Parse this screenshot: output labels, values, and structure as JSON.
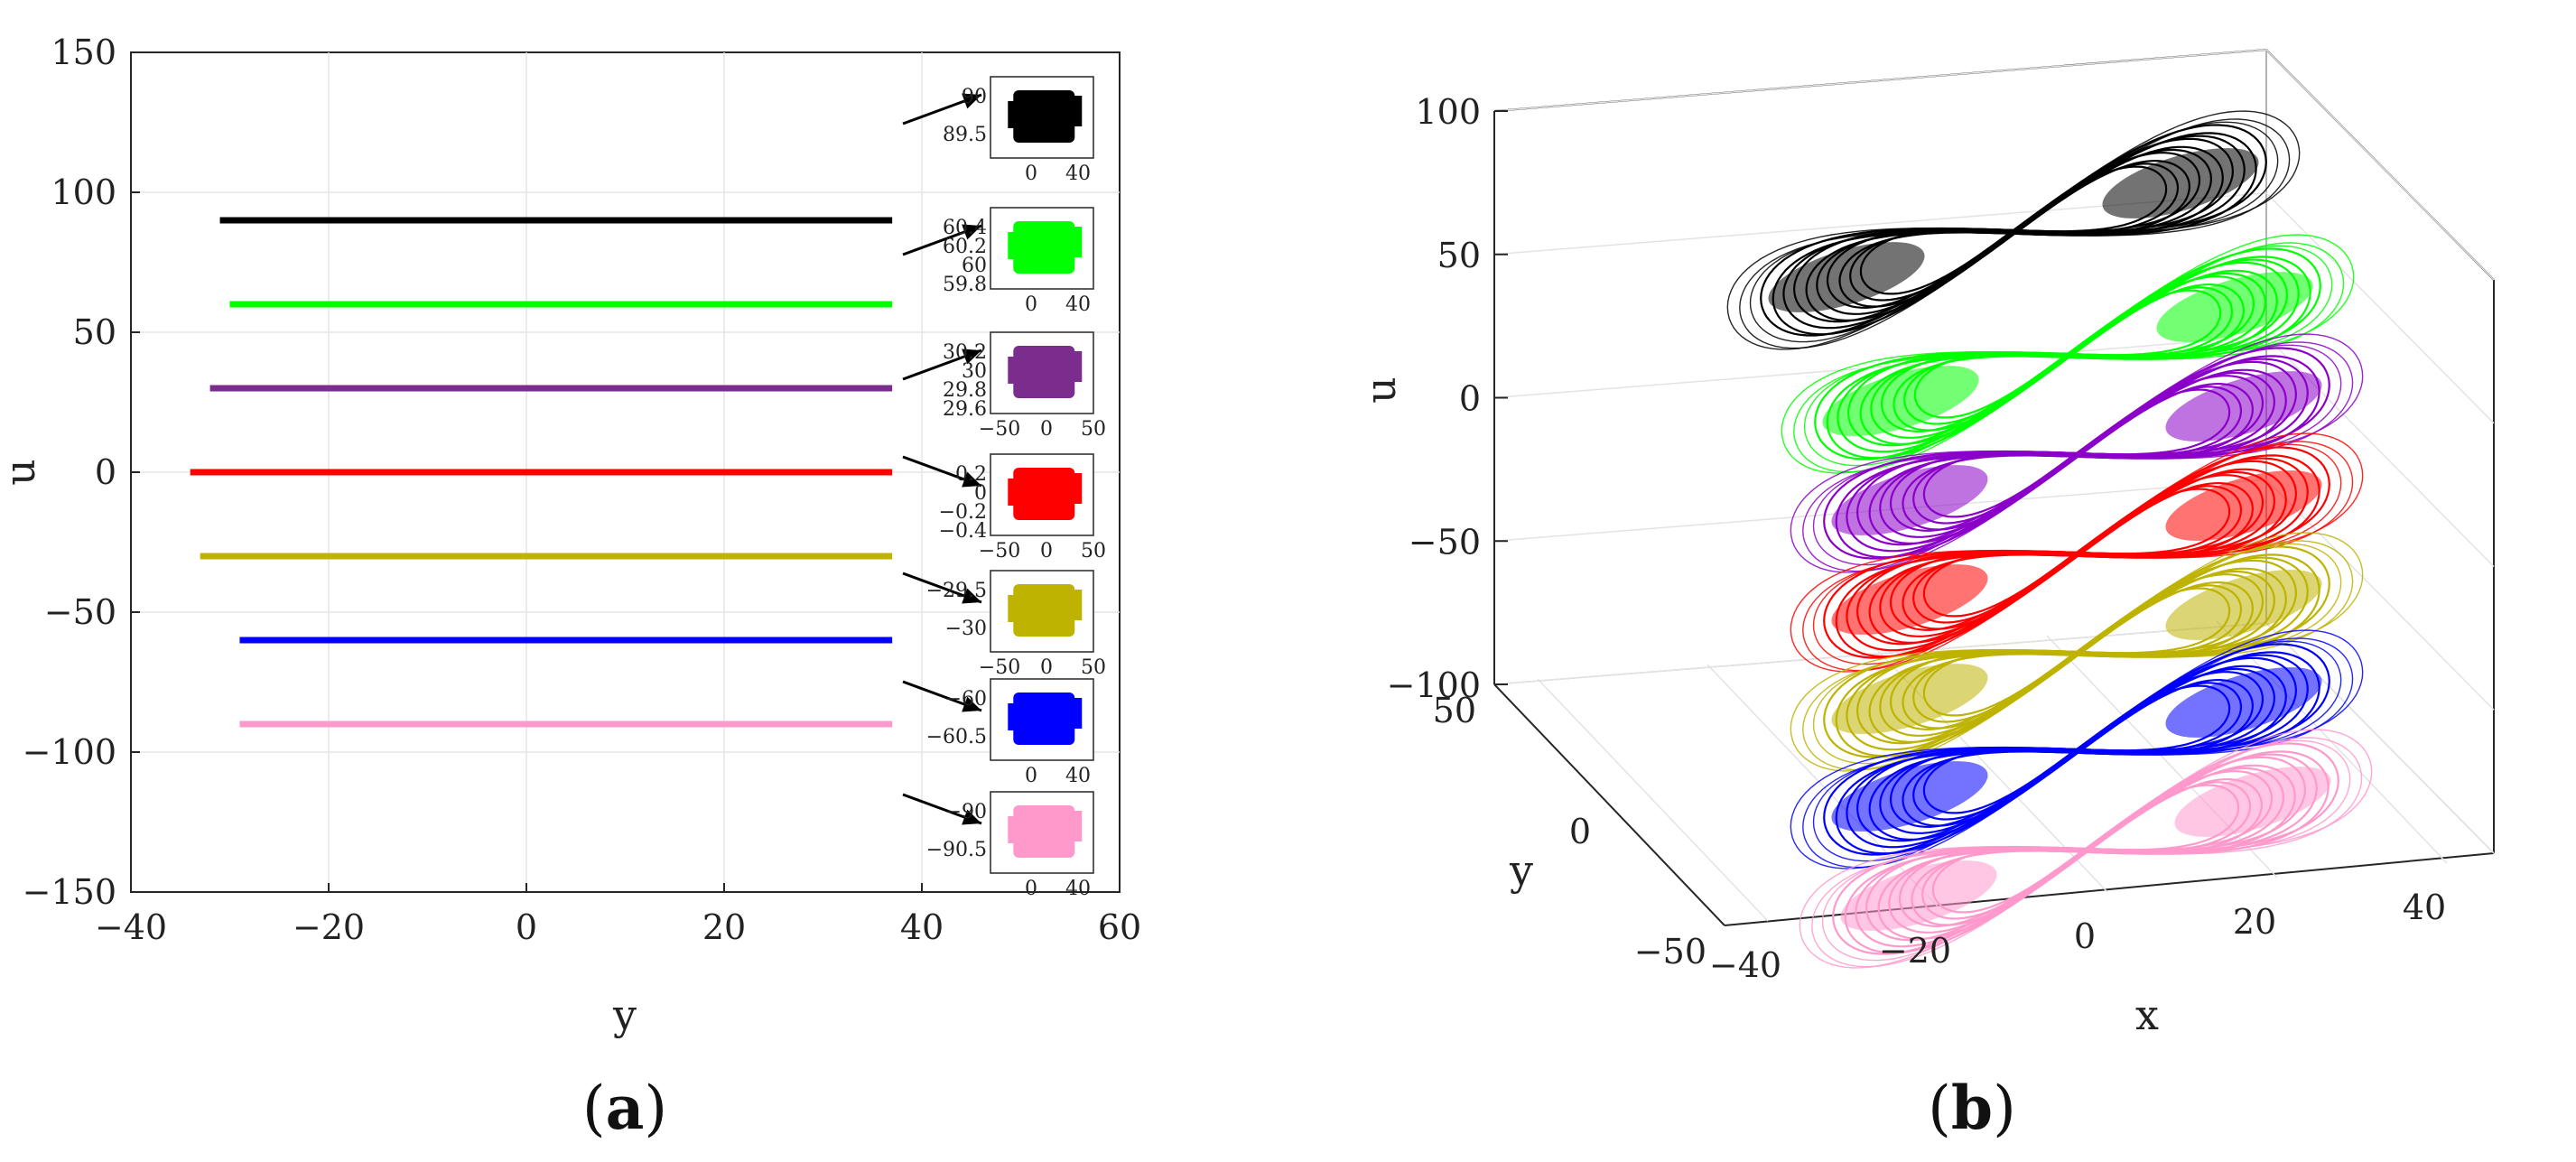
{
  "chart_data": [
    {
      "panel_label": [
        "(",
        "a",
        ")"
      ],
      "type": "line",
      "xlabel": "y",
      "ylabel": "u",
      "xlim": [
        -40,
        60
      ],
      "ylim": [
        -150,
        150
      ],
      "xticks": [
        "−40",
        "−20",
        "0",
        "20",
        "40",
        "60"
      ],
      "yticks": [
        "150",
        "100",
        "50",
        "0",
        "−50",
        "−100",
        "−150"
      ],
      "grid": true,
      "series": [
        {
          "color": "#000000",
          "u": 90,
          "y_range": [
            -31,
            37
          ]
        },
        {
          "color": "#00ff00",
          "u": 60,
          "y_range": [
            -30,
            37
          ]
        },
        {
          "color": "#7b2d8e",
          "u": 30,
          "y_range": [
            -32,
            37
          ]
        },
        {
          "color": "#ff0000",
          "u": 0,
          "y_range": [
            -34,
            37
          ]
        },
        {
          "color": "#bdb300",
          "u": -30,
          "y_range": [
            -33,
            37
          ]
        },
        {
          "color": "#0000ff",
          "u": -60,
          "y_range": [
            -29,
            37
          ]
        },
        {
          "color": "#ff99cc",
          "u": -90,
          "y_range": [
            -29,
            37
          ]
        }
      ],
      "insets": [
        {
          "color": "#000000",
          "yticks": [
            "90",
            "89.5"
          ],
          "xticks": [
            "0",
            "40"
          ]
        },
        {
          "color": "#00ff00",
          "yticks": [
            "60.4",
            "60.2",
            "60",
            "59.8"
          ],
          "xticks": [
            "0",
            "40"
          ]
        },
        {
          "color": "#7b2d8e",
          "yticks": [
            "30.2",
            "30",
            "29.8",
            "29.6"
          ],
          "xticks": [
            "−50",
            "0",
            "50"
          ]
        },
        {
          "color": "#ff0000",
          "yticks": [
            "0.2",
            "0",
            "−0.2",
            "−0.4"
          ],
          "xticks": [
            "−50",
            "0",
            "50"
          ]
        },
        {
          "color": "#bdb300",
          "yticks": [
            "−29.5",
            "−30"
          ],
          "xticks": [
            "−50",
            "0",
            "50"
          ]
        },
        {
          "color": "#0000ff",
          "yticks": [
            "−60",
            "−60.5"
          ],
          "xticks": [
            "0",
            "40"
          ]
        },
        {
          "color": "#ff99cc",
          "yticks": [
            "−90",
            "−90.5"
          ],
          "xticks": [
            "0",
            "40"
          ]
        }
      ]
    },
    {
      "panel_label": [
        "(",
        "b",
        ")"
      ],
      "type": "line",
      "xlabel": "x",
      "ylabel": "y",
      "zlabel": "u",
      "xticks": [
        "−40",
        "−20",
        "0",
        "20",
        "40"
      ],
      "yticks": [
        "−50",
        "0",
        "50"
      ],
      "zticks": [
        "100",
        "50",
        "0",
        "−50",
        "−100"
      ],
      "grid": true,
      "series": [
        {
          "color": "#000000",
          "u": 90
        },
        {
          "color": "#00ff00",
          "u": 60
        },
        {
          "color": "#8b00c9",
          "u": 30
        },
        {
          "color": "#ff0000",
          "u": 0
        },
        {
          "color": "#bdb300",
          "u": -30
        },
        {
          "color": "#0000ff",
          "u": -60
        },
        {
          "color": "#ff99cc",
          "u": -90
        }
      ]
    }
  ]
}
